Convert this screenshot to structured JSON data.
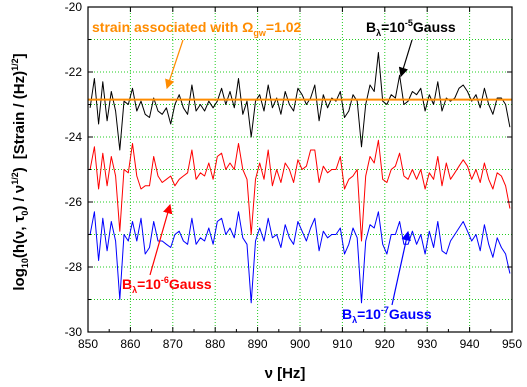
{
  "chart_data": {
    "type": "line",
    "xlabel": {
      "main": "ν",
      "unit": " [Hz]"
    },
    "ylabel": {
      "prefix": "log",
      "prefix_sub": "10",
      "open": "(h(ν, τ",
      "tau_sub": "0",
      "mid": ") / ν",
      "sup": "1/2",
      "close": ")",
      "unit": "[Strain / (Hz)",
      "unit_sup": "1/2",
      "unit_close": "]"
    },
    "xlim": [
      850,
      950
    ],
    "ylim": [
      -30,
      -20
    ],
    "xticks": [
      850,
      860,
      870,
      880,
      890,
      900,
      910,
      920,
      930,
      940,
      950
    ],
    "yticks": [
      -30,
      -28,
      -26,
      -24,
      -22,
      -20
    ],
    "grid": true,
    "x": [
      850.5,
      851.5,
      852.5,
      853.5,
      854.5,
      855.5,
      856.5,
      857.5,
      858.5,
      859.5,
      860.5,
      861.5,
      862.5,
      863.5,
      864.5,
      865.5,
      866.5,
      867.5,
      868.5,
      869.5,
      870.5,
      871.5,
      872.5,
      873.5,
      874.5,
      875.5,
      876.5,
      877.5,
      878.5,
      879.5,
      880.5,
      881.5,
      882.5,
      883.5,
      884.5,
      885.5,
      886.5,
      887.5,
      888.5,
      889.5,
      890.5,
      891.5,
      892.5,
      893.5,
      894.5,
      895.5,
      896.5,
      897.5,
      898.5,
      899.5,
      900.5,
      901.5,
      902.5,
      903.5,
      904.5,
      905.5,
      906.5,
      907.5,
      908.5,
      909.5,
      910.5,
      911.5,
      912.5,
      913.5,
      914.5,
      915.5,
      916.5,
      917.5,
      918.5,
      919.5,
      920.5,
      921.5,
      922.5,
      923.5,
      924.5,
      925.5,
      926.5,
      927.5,
      928.5,
      929.5,
      930.5,
      931.5,
      932.5,
      933.5,
      934.5,
      935.5,
      936.5,
      937.5,
      938.5,
      939.5,
      940.5,
      941.5,
      942.5,
      943.5,
      944.5,
      945.5,
      946.5,
      947.5,
      948.5,
      949.5
    ],
    "series": [
      {
        "color": "#000000",
        "values": [
          -23.1,
          -22.2,
          -23.6,
          -22.3,
          -23.5,
          -22.6,
          -23.2,
          -24.4,
          -22.9,
          -23.0,
          -22.5,
          -23.2,
          -22.9,
          -23.3,
          -23.4,
          -22.8,
          -23.2,
          -23.3,
          -23.1,
          -23.6,
          -23.0,
          -22.7,
          -23.1,
          -23.3,
          -22.4,
          -23.2,
          -23.0,
          -23.2,
          -22.9,
          -23.1,
          -22.9,
          -22.5,
          -23.0,
          -22.6,
          -23.1,
          -22.2,
          -23.3,
          -22.9,
          -24.0,
          -22.9,
          -22.7,
          -23.2,
          -22.4,
          -23.1,
          -22.8,
          -23.3,
          -22.6,
          -23.0,
          -23.2,
          -22.5,
          -22.7,
          -23.0,
          -22.8,
          -22.4,
          -23.5,
          -22.7,
          -23.1,
          -22.8,
          -22.9,
          -22.6,
          -23.4,
          -23.2,
          -22.7,
          -22.9,
          -24.3,
          -23.0,
          -22.4,
          -22.6,
          -21.4,
          -22.9,
          -23.0,
          -22.7,
          -22.8,
          -22.1,
          -23.0,
          -22.9,
          -22.6,
          -22.7,
          -22.5,
          -23.2,
          -22.7,
          -23.0,
          -22.3,
          -23.2,
          -22.8,
          -22.9,
          -22.8,
          -22.5,
          -22.4,
          -22.6,
          -22.9,
          -22.7,
          -23.1,
          -22.5,
          -23.0,
          -23.3,
          -22.8,
          -22.8,
          -23.0,
          -23.7
        ]
      },
      {
        "color": "#ff0000",
        "values": [
          -25.0,
          -24.3,
          -25.6,
          -24.5,
          -25.5,
          -24.6,
          -25.2,
          -26.9,
          -25.0,
          -25.1,
          -24.2,
          -25.2,
          -25.6,
          -25.5,
          -25.5,
          -24.6,
          -25.2,
          -25.4,
          -25.3,
          -25.2,
          -25.5,
          -25.3,
          -25.2,
          -25.1,
          -24.4,
          -25.3,
          -25.1,
          -25.2,
          -24.8,
          -25.3,
          -24.6,
          -24.5,
          -25.0,
          -24.8,
          -25.0,
          -24.2,
          -25.0,
          -25.3,
          -27.0,
          -25.3,
          -24.8,
          -25.3,
          -24.4,
          -25.5,
          -25.0,
          -25.4,
          -24.8,
          -25.0,
          -25.4,
          -24.7,
          -25.0,
          -24.9,
          -24.4,
          -24.4,
          -25.4,
          -24.9,
          -25.1,
          -25.0,
          -25.0,
          -24.6,
          -25.6,
          -25.3,
          -25.2,
          -25.0,
          -27.2,
          -25.2,
          -24.6,
          -24.8,
          -24.1,
          -25.3,
          -25.4,
          -25.0,
          -24.9,
          -24.5,
          -25.2,
          -25.3,
          -25.0,
          -25.3,
          -25.0,
          -25.6,
          -25.1,
          -25.3,
          -24.6,
          -25.5,
          -24.8,
          -25.3,
          -25.1,
          -24.9,
          -24.7,
          -24.9,
          -25.3,
          -25.0,
          -25.4,
          -24.8,
          -25.3,
          -25.6,
          -25.1,
          -25.2,
          -25.5,
          -26.2
        ]
      },
      {
        "color": "#0000ff",
        "values": [
          -27.0,
          -26.3,
          -27.8,
          -26.5,
          -27.5,
          -26.6,
          -27.2,
          -29.0,
          -27.0,
          -27.2,
          -26.6,
          -27.2,
          -26.5,
          -27.6,
          -27.4,
          -26.6,
          -27.2,
          -27.2,
          -27.3,
          -27.4,
          -27.0,
          -26.9,
          -27.2,
          -27.3,
          -26.5,
          -27.3,
          -27.1,
          -27.2,
          -26.8,
          -27.3,
          -26.6,
          -26.5,
          -27.0,
          -26.8,
          -27.1,
          -26.3,
          -27.1,
          -27.3,
          -29.1,
          -27.2,
          -26.8,
          -27.2,
          -26.5,
          -27.1,
          -27.0,
          -27.4,
          -26.7,
          -27.1,
          -27.3,
          -26.6,
          -26.9,
          -27.2,
          -26.8,
          -26.5,
          -27.5,
          -26.9,
          -27.1,
          -27.0,
          -27.0,
          -26.8,
          -27.6,
          -27.3,
          -26.8,
          -27.1,
          -29.1,
          -27.2,
          -26.7,
          -26.8,
          -26.3,
          -27.3,
          -27.6,
          -27.0,
          -27.0,
          -26.6,
          -27.3,
          -27.3,
          -26.9,
          -27.3,
          -27.0,
          -27.6,
          -26.9,
          -27.4,
          -26.6,
          -27.5,
          -27.6,
          -27.2,
          -27.0,
          -26.8,
          -26.6,
          -26.9,
          -27.2,
          -27.0,
          -27.5,
          -26.7,
          -27.3,
          -27.7,
          -27.1,
          -27.4,
          -27.6,
          -28.2
        ]
      }
    ],
    "reference_line": {
      "y": -22.85,
      "color": "#ff8c00"
    },
    "annotations": {
      "strain": {
        "text": "strain associated with ",
        "omega": "Ω",
        "omega_sub": "gw",
        "value": "=1.02",
        "color": "#ff8c00"
      },
      "b5": {
        "b": "B",
        "sub": "λ",
        "eq": "=10",
        "sup": "-5",
        "unit": "Gauss",
        "color": "#000000"
      },
      "b6": {
        "b": "B",
        "sub": "λ",
        "eq": "=10",
        "sup": "-6",
        "unit": "Gauss",
        "color": "#ff0000"
      },
      "b7": {
        "b": "B",
        "sub": "λ",
        "eq": "=10",
        "sup": "-7",
        "unit": "Gauss",
        "color": "#0000ff"
      }
    }
  }
}
